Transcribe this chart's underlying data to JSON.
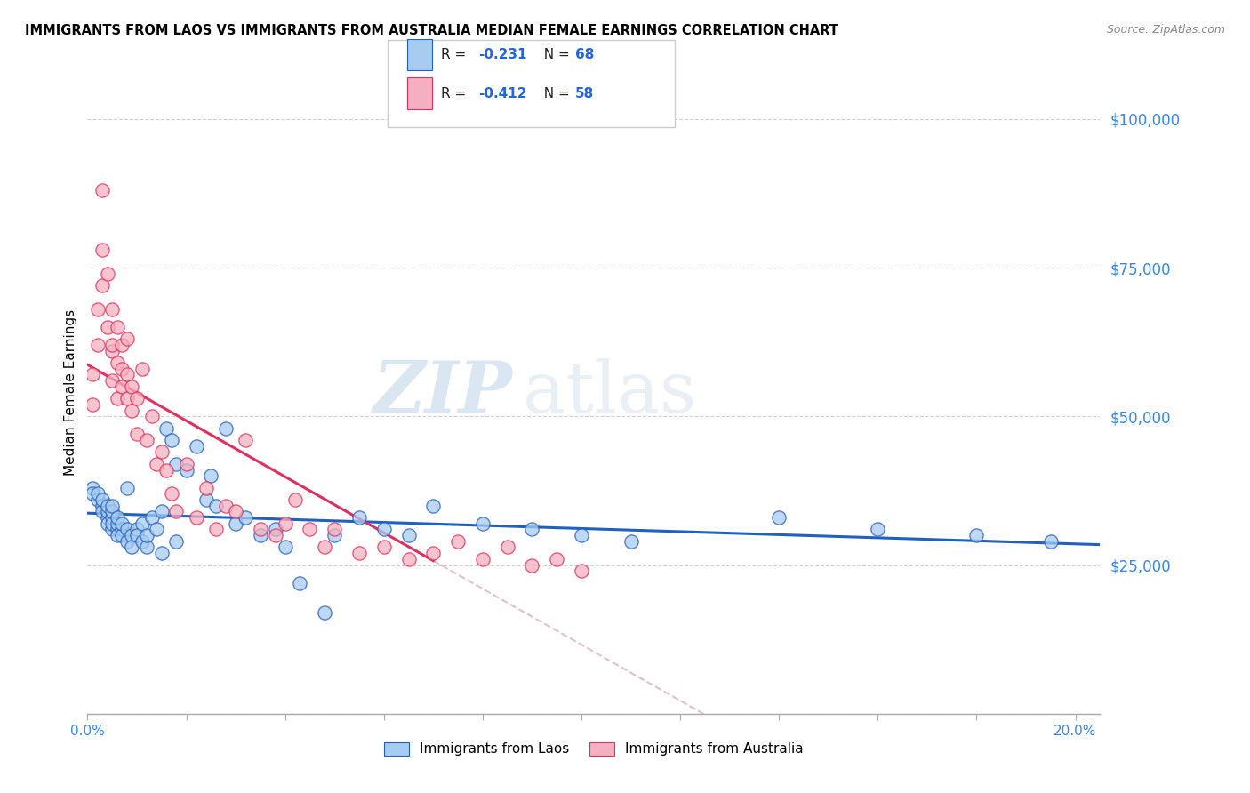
{
  "title": "IMMIGRANTS FROM LAOS VS IMMIGRANTS FROM AUSTRALIA MEDIAN FEMALE EARNINGS CORRELATION CHART",
  "source": "Source: ZipAtlas.com",
  "ylabel": "Median Female Earnings",
  "yticks": [
    0,
    25000,
    50000,
    75000,
    100000
  ],
  "ytick_labels": [
    "",
    "$25,000",
    "$50,000",
    "$75,000",
    "$100,000"
  ],
  "color_laos": "#A8CCF0",
  "color_australia": "#F4B0C0",
  "line_color_laos": "#2060C0",
  "line_color_australia": "#E03060",
  "line_color_ext": "#E0B0C0",
  "watermark_zip": "ZIP",
  "watermark_atlas": "atlas",
  "background_color": "#FFFFFF",
  "grid_color": "#CCCCCC",
  "laos_x": [
    0.001,
    0.001,
    0.002,
    0.002,
    0.003,
    0.003,
    0.003,
    0.004,
    0.004,
    0.004,
    0.004,
    0.005,
    0.005,
    0.005,
    0.005,
    0.005,
    0.006,
    0.006,
    0.006,
    0.006,
    0.007,
    0.007,
    0.007,
    0.008,
    0.008,
    0.008,
    0.009,
    0.009,
    0.01,
    0.01,
    0.011,
    0.011,
    0.012,
    0.012,
    0.013,
    0.014,
    0.015,
    0.015,
    0.016,
    0.017,
    0.018,
    0.018,
    0.02,
    0.022,
    0.024,
    0.025,
    0.026,
    0.028,
    0.03,
    0.032,
    0.035,
    0.038,
    0.04,
    0.043,
    0.048,
    0.05,
    0.055,
    0.06,
    0.065,
    0.07,
    0.08,
    0.09,
    0.1,
    0.11,
    0.14,
    0.16,
    0.18,
    0.195
  ],
  "laos_y": [
    38000,
    37000,
    36000,
    37000,
    35000,
    34000,
    36000,
    33000,
    34000,
    35000,
    32000,
    31000,
    33000,
    32000,
    34000,
    35000,
    31000,
    32000,
    30000,
    33000,
    31000,
    30000,
    32000,
    38000,
    29000,
    31000,
    30000,
    28000,
    31000,
    30000,
    29000,
    32000,
    28000,
    30000,
    33000,
    31000,
    34000,
    27000,
    48000,
    46000,
    42000,
    29000,
    41000,
    45000,
    36000,
    40000,
    35000,
    48000,
    32000,
    33000,
    30000,
    31000,
    28000,
    22000,
    17000,
    30000,
    33000,
    31000,
    30000,
    35000,
    32000,
    31000,
    30000,
    29000,
    33000,
    31000,
    30000,
    29000
  ],
  "australia_x": [
    0.001,
    0.001,
    0.002,
    0.002,
    0.003,
    0.003,
    0.003,
    0.004,
    0.004,
    0.005,
    0.005,
    0.005,
    0.005,
    0.006,
    0.006,
    0.006,
    0.007,
    0.007,
    0.007,
    0.008,
    0.008,
    0.008,
    0.009,
    0.009,
    0.01,
    0.01,
    0.011,
    0.012,
    0.013,
    0.014,
    0.015,
    0.016,
    0.017,
    0.018,
    0.02,
    0.022,
    0.024,
    0.026,
    0.028,
    0.03,
    0.032,
    0.035,
    0.038,
    0.04,
    0.042,
    0.045,
    0.048,
    0.05,
    0.055,
    0.06,
    0.065,
    0.07,
    0.075,
    0.08,
    0.085,
    0.09,
    0.095,
    0.1
  ],
  "australia_y": [
    57000,
    52000,
    62000,
    68000,
    72000,
    78000,
    88000,
    74000,
    65000,
    61000,
    68000,
    56000,
    62000,
    53000,
    59000,
    65000,
    55000,
    62000,
    58000,
    53000,
    63000,
    57000,
    51000,
    55000,
    47000,
    53000,
    58000,
    46000,
    50000,
    42000,
    44000,
    41000,
    37000,
    34000,
    42000,
    33000,
    38000,
    31000,
    35000,
    34000,
    46000,
    31000,
    30000,
    32000,
    36000,
    31000,
    28000,
    31000,
    27000,
    28000,
    26000,
    27000,
    29000,
    26000,
    28000,
    25000,
    26000,
    24000
  ]
}
